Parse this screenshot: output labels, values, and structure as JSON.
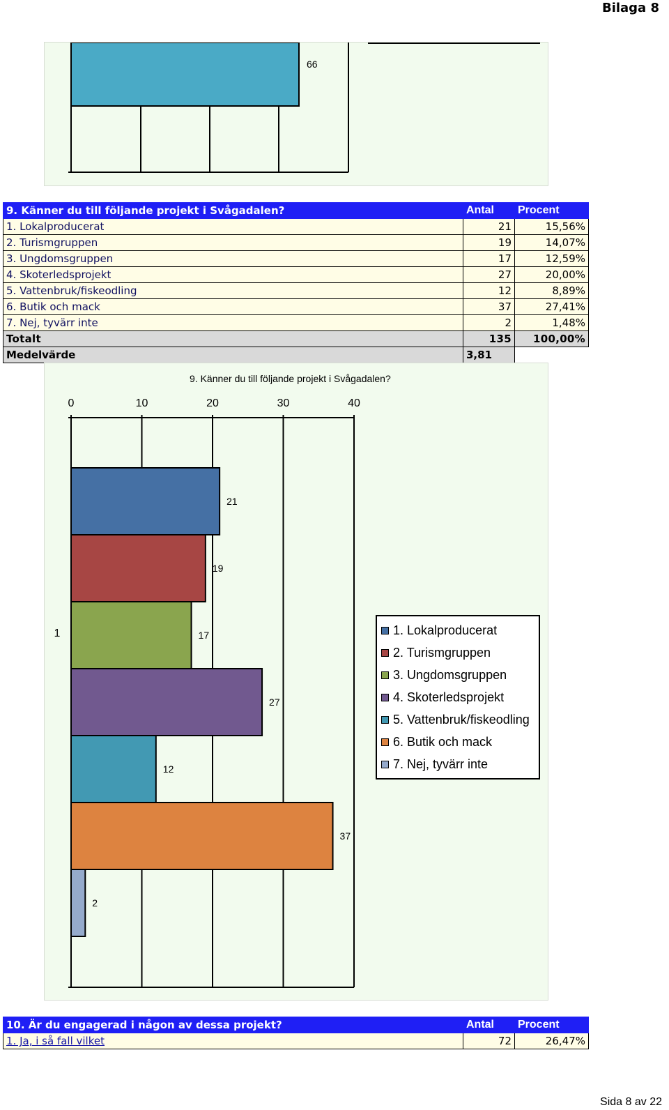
{
  "header": {
    "title": "Bilaga 8"
  },
  "footer": {
    "page_label": "Sida 8 av 22"
  },
  "prev_chart": {
    "value_label": "66"
  },
  "q9": {
    "title": "9. Känner du till följande projekt i Svågadalen?",
    "col_count": "Antal",
    "col_percent": "Procent",
    "rows": [
      {
        "label": "1. Lokalproducerat",
        "count": "21",
        "percent": "15,56%"
      },
      {
        "label": "2. Turismgruppen",
        "count": "19",
        "percent": "14,07%"
      },
      {
        "label": "3. Ungdomsgruppen",
        "count": "17",
        "percent": "12,59%"
      },
      {
        "label": "4. Skoterledsprojekt",
        "count": "27",
        "percent": "20,00%"
      },
      {
        "label": "5. Vattenbruk/fiskeodling",
        "count": "12",
        "percent": "8,89%"
      },
      {
        "label": "6. Butik och mack",
        "count": "37",
        "percent": "27,41%"
      },
      {
        "label": "7. Nej, tyvärr inte",
        "count": "2",
        "percent": "1,48%"
      }
    ],
    "total_label": "Totalt",
    "total_count": "135",
    "total_percent": "100,00%",
    "mean_label": "Medelvärde",
    "mean_value": "3,81"
  },
  "chart_data": {
    "type": "bar",
    "orientation": "horizontal",
    "title": "9. Känner du till följande projekt i Svågadalen?",
    "categories": [
      "1"
    ],
    "xlim": [
      0,
      40
    ],
    "x_ticks": [
      0,
      10,
      20,
      30,
      40
    ],
    "grid": true,
    "legend_position": "right",
    "series": [
      {
        "name": "1. Lokalproducerat",
        "values": [
          21
        ],
        "color": "#4570a4"
      },
      {
        "name": "2. Turismgruppen",
        "values": [
          19
        ],
        "color": "#a74644"
      },
      {
        "name": "3. Ungdomsgruppen",
        "values": [
          17
        ],
        "color": "#8aa54e"
      },
      {
        "name": "4. Skoterledsprojekt",
        "values": [
          27
        ],
        "color": "#71598f"
      },
      {
        "name": "5. Vattenbruk/fiskeodling",
        "values": [
          12
        ],
        "color": "#4299b3"
      },
      {
        "name": "6. Butik och mack",
        "values": [
          37
        ],
        "color": "#dd8340"
      },
      {
        "name": "7. Nej, tyvärr inte",
        "values": [
          2
        ],
        "color": "#95aacc"
      }
    ]
  },
  "q10": {
    "title": "10. Är du engagerad i någon av dessa projekt?",
    "col_count": "Antal",
    "col_percent": "Procent",
    "rows": [
      {
        "label": "1. Ja, i så fall vilket",
        "count": "72",
        "percent": "26,47%"
      }
    ]
  }
}
